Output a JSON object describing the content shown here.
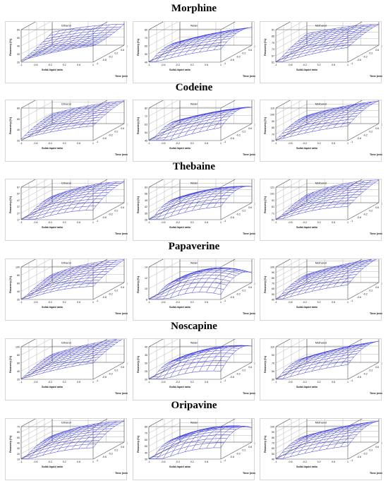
{
  "sections": [
    {
      "title": "Morphine",
      "panels": [
        {
          "solvent": "Ethanol",
          "z_ticks": [
            "20",
            "30",
            "40",
            "50",
            "60"
          ]
        },
        {
          "solvent": "Water",
          "z_ticks": [
            "40",
            "50",
            "60",
            "70",
            "80"
          ]
        },
        {
          "solvent": "Methanol",
          "z_ticks": [
            "61",
            "67",
            "73",
            "79",
            "85",
            "91"
          ]
        }
      ]
    },
    {
      "title": "Codeine",
      "panels": [
        {
          "solvent": "Ethanol",
          "z_ticks": [
            "20",
            "40",
            "60",
            "80"
          ]
        },
        {
          "solvent": "Water",
          "z_ticks": [
            "45",
            "54",
            "63",
            "72",
            "82"
          ]
        },
        {
          "solvent": "Methanol",
          "z_ticks": [
            "60",
            "70",
            "80",
            "90",
            "100",
            "110"
          ]
        }
      ]
    },
    {
      "title": "Thebaine",
      "panels": [
        {
          "solvent": "Ethanol",
          "z_ticks": [
            "17",
            "27",
            "37",
            "47",
            "57",
            "67"
          ]
        },
        {
          "solvent": "Water",
          "z_ticks": [
            "28",
            "35",
            "42",
            "49",
            "56",
            "63"
          ]
        },
        {
          "solvent": "Methanol",
          "z_ticks": [
            "61",
            "71",
            "81",
            "91",
            "101",
            "121"
          ]
        }
      ]
    },
    {
      "title": "Papaverine",
      "panels": [
        {
          "solvent": "Ethanol",
          "z_ticks": [
            "20",
            "40",
            "60",
            "80",
            "100"
          ]
        },
        {
          "solvent": "Water",
          "z_ticks": [
            "8",
            "10",
            "12",
            "14"
          ]
        },
        {
          "solvent": "Methanol",
          "z_ticks": [
            "40",
            "50",
            "60",
            "70",
            "80",
            "90",
            "100"
          ]
        }
      ]
    },
    {
      "title": "Noscapine",
      "panels": [
        {
          "solvent": "Ethanol",
          "z_ticks": [
            "20",
            "40",
            "60",
            "80",
            "100"
          ]
        },
        {
          "solvent": "Water",
          "z_ticks": [
            "20",
            "25",
            "30",
            "35",
            "40"
          ]
        },
        {
          "solvent": "Methanol",
          "z_ticks": [
            "30",
            "50",
            "70",
            "90",
            "110"
          ]
        }
      ]
    },
    {
      "title": "Oripavine",
      "panels": [
        {
          "solvent": "Ethanol",
          "z_ticks": [
            "10",
            "20",
            "30",
            "40",
            "50",
            "60",
            "70"
          ]
        },
        {
          "solvent": "Water",
          "z_ticks": [
            "30",
            "40",
            "50",
            "60",
            "70",
            "80"
          ]
        },
        {
          "solvent": "Methanol",
          "z_ticks": [
            "40",
            "50",
            "60",
            "70",
            "80",
            "90",
            "100"
          ]
        }
      ]
    }
  ],
  "axis_labels": {
    "x": "Solid-liquid ratio",
    "y": "Time (min)",
    "z": "Recovery (%)"
  },
  "x_ticks": [
    "-1",
    "-0.6",
    "-0.2",
    "0.2",
    "0.6",
    "1"
  ],
  "y_ticks": [
    "-1",
    "-0.6",
    "-0.2",
    "0.2",
    "0.6",
    "1"
  ],
  "colors": {
    "surface": "#3a3ae0",
    "box": "#555555",
    "grid": "#b5b5b5"
  },
  "chart_data": {
    "type": "surface3d",
    "layout": "6 rows x 3 columns of response-surface plots",
    "x_range": [
      -1,
      1
    ],
    "y_range": [
      -1,
      1
    ],
    "mesh_points": 11
  }
}
